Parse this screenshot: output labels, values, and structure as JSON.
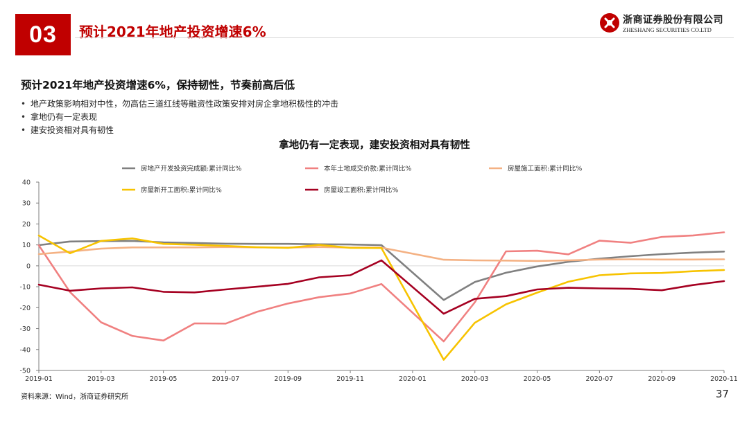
{
  "header": {
    "section_number": "03",
    "title": "预计2021年地产投资增速6%",
    "logo_cn": "浙商证券股份有限公司",
    "logo_en": "ZHESHANG SECURITIES CO.LTD"
  },
  "subtitle": "预计2021年地产投资增速6%，保持韧性，节奏前高后低",
  "bullets": [
    "地产政策影响相对中性，勿高估三道红线等融资性政策安排对房企拿地积极性的冲击",
    "拿地仍有一定表现",
    "建安投资相对具有韧性"
  ],
  "source": "资料来源：Wind，浙商证券研究所",
  "page_number": "37",
  "colors": {
    "brand_red": "#c00000"
  },
  "chart_data": {
    "type": "line",
    "title": "拿地仍有一定表现，建安投资相对具有韧性",
    "x": [
      "2019-01",
      "2019-02",
      "2019-03",
      "2019-04",
      "2019-05",
      "2019-06",
      "2019-07",
      "2019-08",
      "2019-09",
      "2019-10",
      "2019-11",
      "2019-12",
      "2020-01",
      "2020-02",
      "2020-03",
      "2020-04",
      "2020-05",
      "2020-06",
      "2020-07",
      "2020-08",
      "2020-09",
      "2020-10",
      "2020-11"
    ],
    "x_tick_labels": [
      "2019-01",
      "2019-03",
      "2019-05",
      "2019-07",
      "2019-09",
      "2019-11",
      "2020-01",
      "2020-03",
      "2020-05",
      "2020-07",
      "2020-09",
      "2020-11"
    ],
    "ylim": [
      -50,
      40
    ],
    "y_ticks": [
      40,
      30,
      20,
      10,
      0,
      -10,
      -20,
      -30,
      -40,
      -50
    ],
    "legend_placement": "top",
    "grid": false,
    "series": [
      {
        "name": "房地产开发投资完成额:累计同比%",
        "color": "#808080",
        "values": [
          9.9,
          11.6,
          11.8,
          11.9,
          11.2,
          10.9,
          10.6,
          10.5,
          10.5,
          10.3,
          10.2,
          9.9,
          null,
          -16.3,
          -7.7,
          -3.3,
          -0.3,
          1.9,
          3.4,
          4.6,
          5.6,
          6.3,
          6.8
        ]
      },
      {
        "name": "本年土地成交价款:累计同比%",
        "color": "#f08080",
        "values": [
          9.8,
          -12.5,
          -27.0,
          -33.5,
          -35.7,
          -27.5,
          -27.6,
          -22.0,
          -18.0,
          -15.0,
          -13.2,
          -8.7,
          null,
          -36.1,
          -17.4,
          6.9,
          7.2,
          5.5,
          12.0,
          11.0,
          13.8,
          14.5,
          16.0
        ]
      },
      {
        "name": "房屋施工面积:累计同比%",
        "color": "#f4b183",
        "values": [
          5.6,
          6.8,
          8.2,
          8.8,
          8.8,
          8.8,
          9.0,
          8.8,
          8.7,
          9.0,
          8.7,
          8.7,
          null,
          2.9,
          2.6,
          2.5,
          2.3,
          2.6,
          3.0,
          3.1,
          3.0,
          3.0,
          3.1
        ]
      },
      {
        "name": "房屋新开工面积:累计同比%",
        "color": "#f7c300",
        "values": [
          14.5,
          6.0,
          11.9,
          13.1,
          10.5,
          10.1,
          9.5,
          8.9,
          8.6,
          10.0,
          8.6,
          8.5,
          null,
          -44.9,
          -27.2,
          -18.4,
          -12.8,
          -7.6,
          -4.5,
          -3.6,
          -3.4,
          -2.6,
          -2.0
        ]
      },
      {
        "name": "房屋竣工面积:累计同比%",
        "color": "#a50021",
        "values": [
          -9.0,
          -11.9,
          -10.8,
          -10.3,
          -12.4,
          -12.7,
          -11.3,
          -10.0,
          -8.6,
          -5.5,
          -4.5,
          2.6,
          null,
          -22.9,
          -15.8,
          -14.5,
          -11.3,
          -10.5,
          -10.8,
          -11.0,
          -11.7,
          -9.2,
          -7.3
        ]
      }
    ]
  }
}
